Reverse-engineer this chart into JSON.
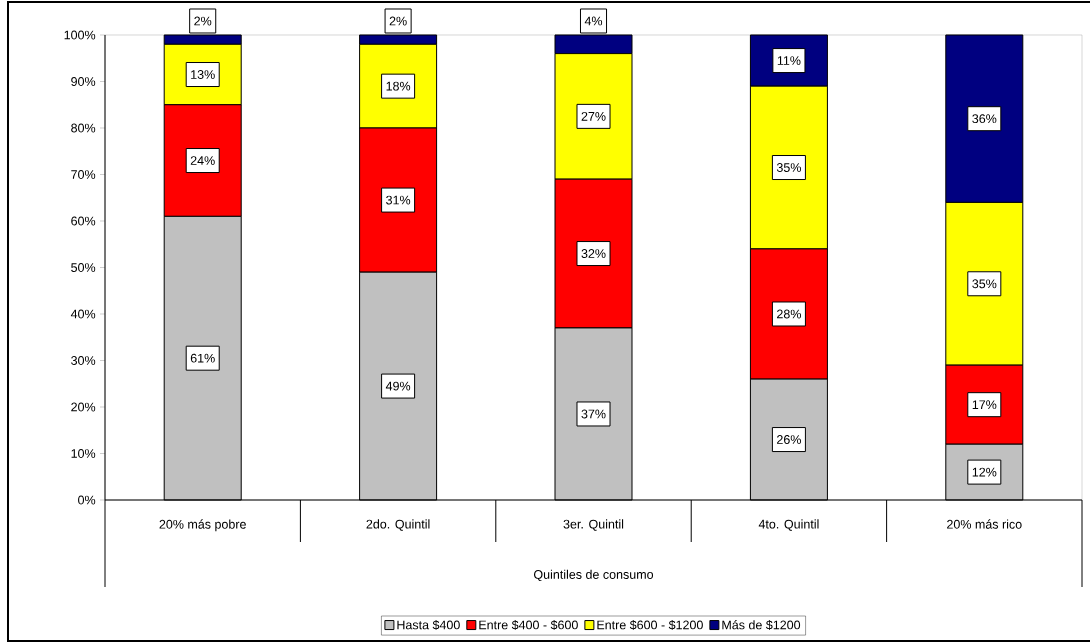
{
  "chart_data": {
    "type": "bar",
    "stacked": true,
    "categories": [
      "20% más pobre",
      "2do. Quintil",
      "3er. Quintil",
      "4to. Quintil",
      "20% más rico"
    ],
    "xlabel": "Quintiles de consumo",
    "series": [
      {
        "name": "Hasta $400",
        "color": "#c0c0c0",
        "values": [
          61,
          49,
          37,
          26,
          12
        ],
        "value_labels": [
          "61%",
          "49%",
          "37%",
          "26%",
          "12%"
        ]
      },
      {
        "name": "Entre $400 - $600",
        "color": "#ff0000",
        "values": [
          24,
          31,
          32,
          28,
          17
        ],
        "value_labels": [
          "24%",
          "31%",
          "32%",
          "28%",
          "17%"
        ]
      },
      {
        "name": "Entre $600 - $1200",
        "color": "#ffff00",
        "values": [
          13,
          18,
          27,
          35,
          35
        ],
        "value_labels": [
          "13%",
          "18%",
          "27%",
          "35%",
          "35%"
        ]
      },
      {
        "name": "Más de $1200",
        "color": "#000080",
        "values": [
          2,
          2,
          4,
          11,
          36
        ],
        "value_labels": [
          "2%",
          "2%",
          "4%",
          "11%",
          "36%"
        ]
      }
    ],
    "ylim": [
      0,
      100
    ],
    "yticks": [
      {
        "value": 0,
        "label": "0%"
      },
      {
        "value": 10,
        "label": "10%"
      },
      {
        "value": 20,
        "label": "20%"
      },
      {
        "value": 30,
        "label": "30%"
      },
      {
        "value": 40,
        "label": "40%"
      },
      {
        "value": 50,
        "label": "50%"
      },
      {
        "value": 60,
        "label": "60%"
      },
      {
        "value": 70,
        "label": "70%"
      },
      {
        "value": 80,
        "label": "80%"
      },
      {
        "value": 90,
        "label": "90%"
      },
      {
        "value": 100,
        "label": "100%"
      }
    ],
    "grid": false,
    "legend": "bottom"
  }
}
